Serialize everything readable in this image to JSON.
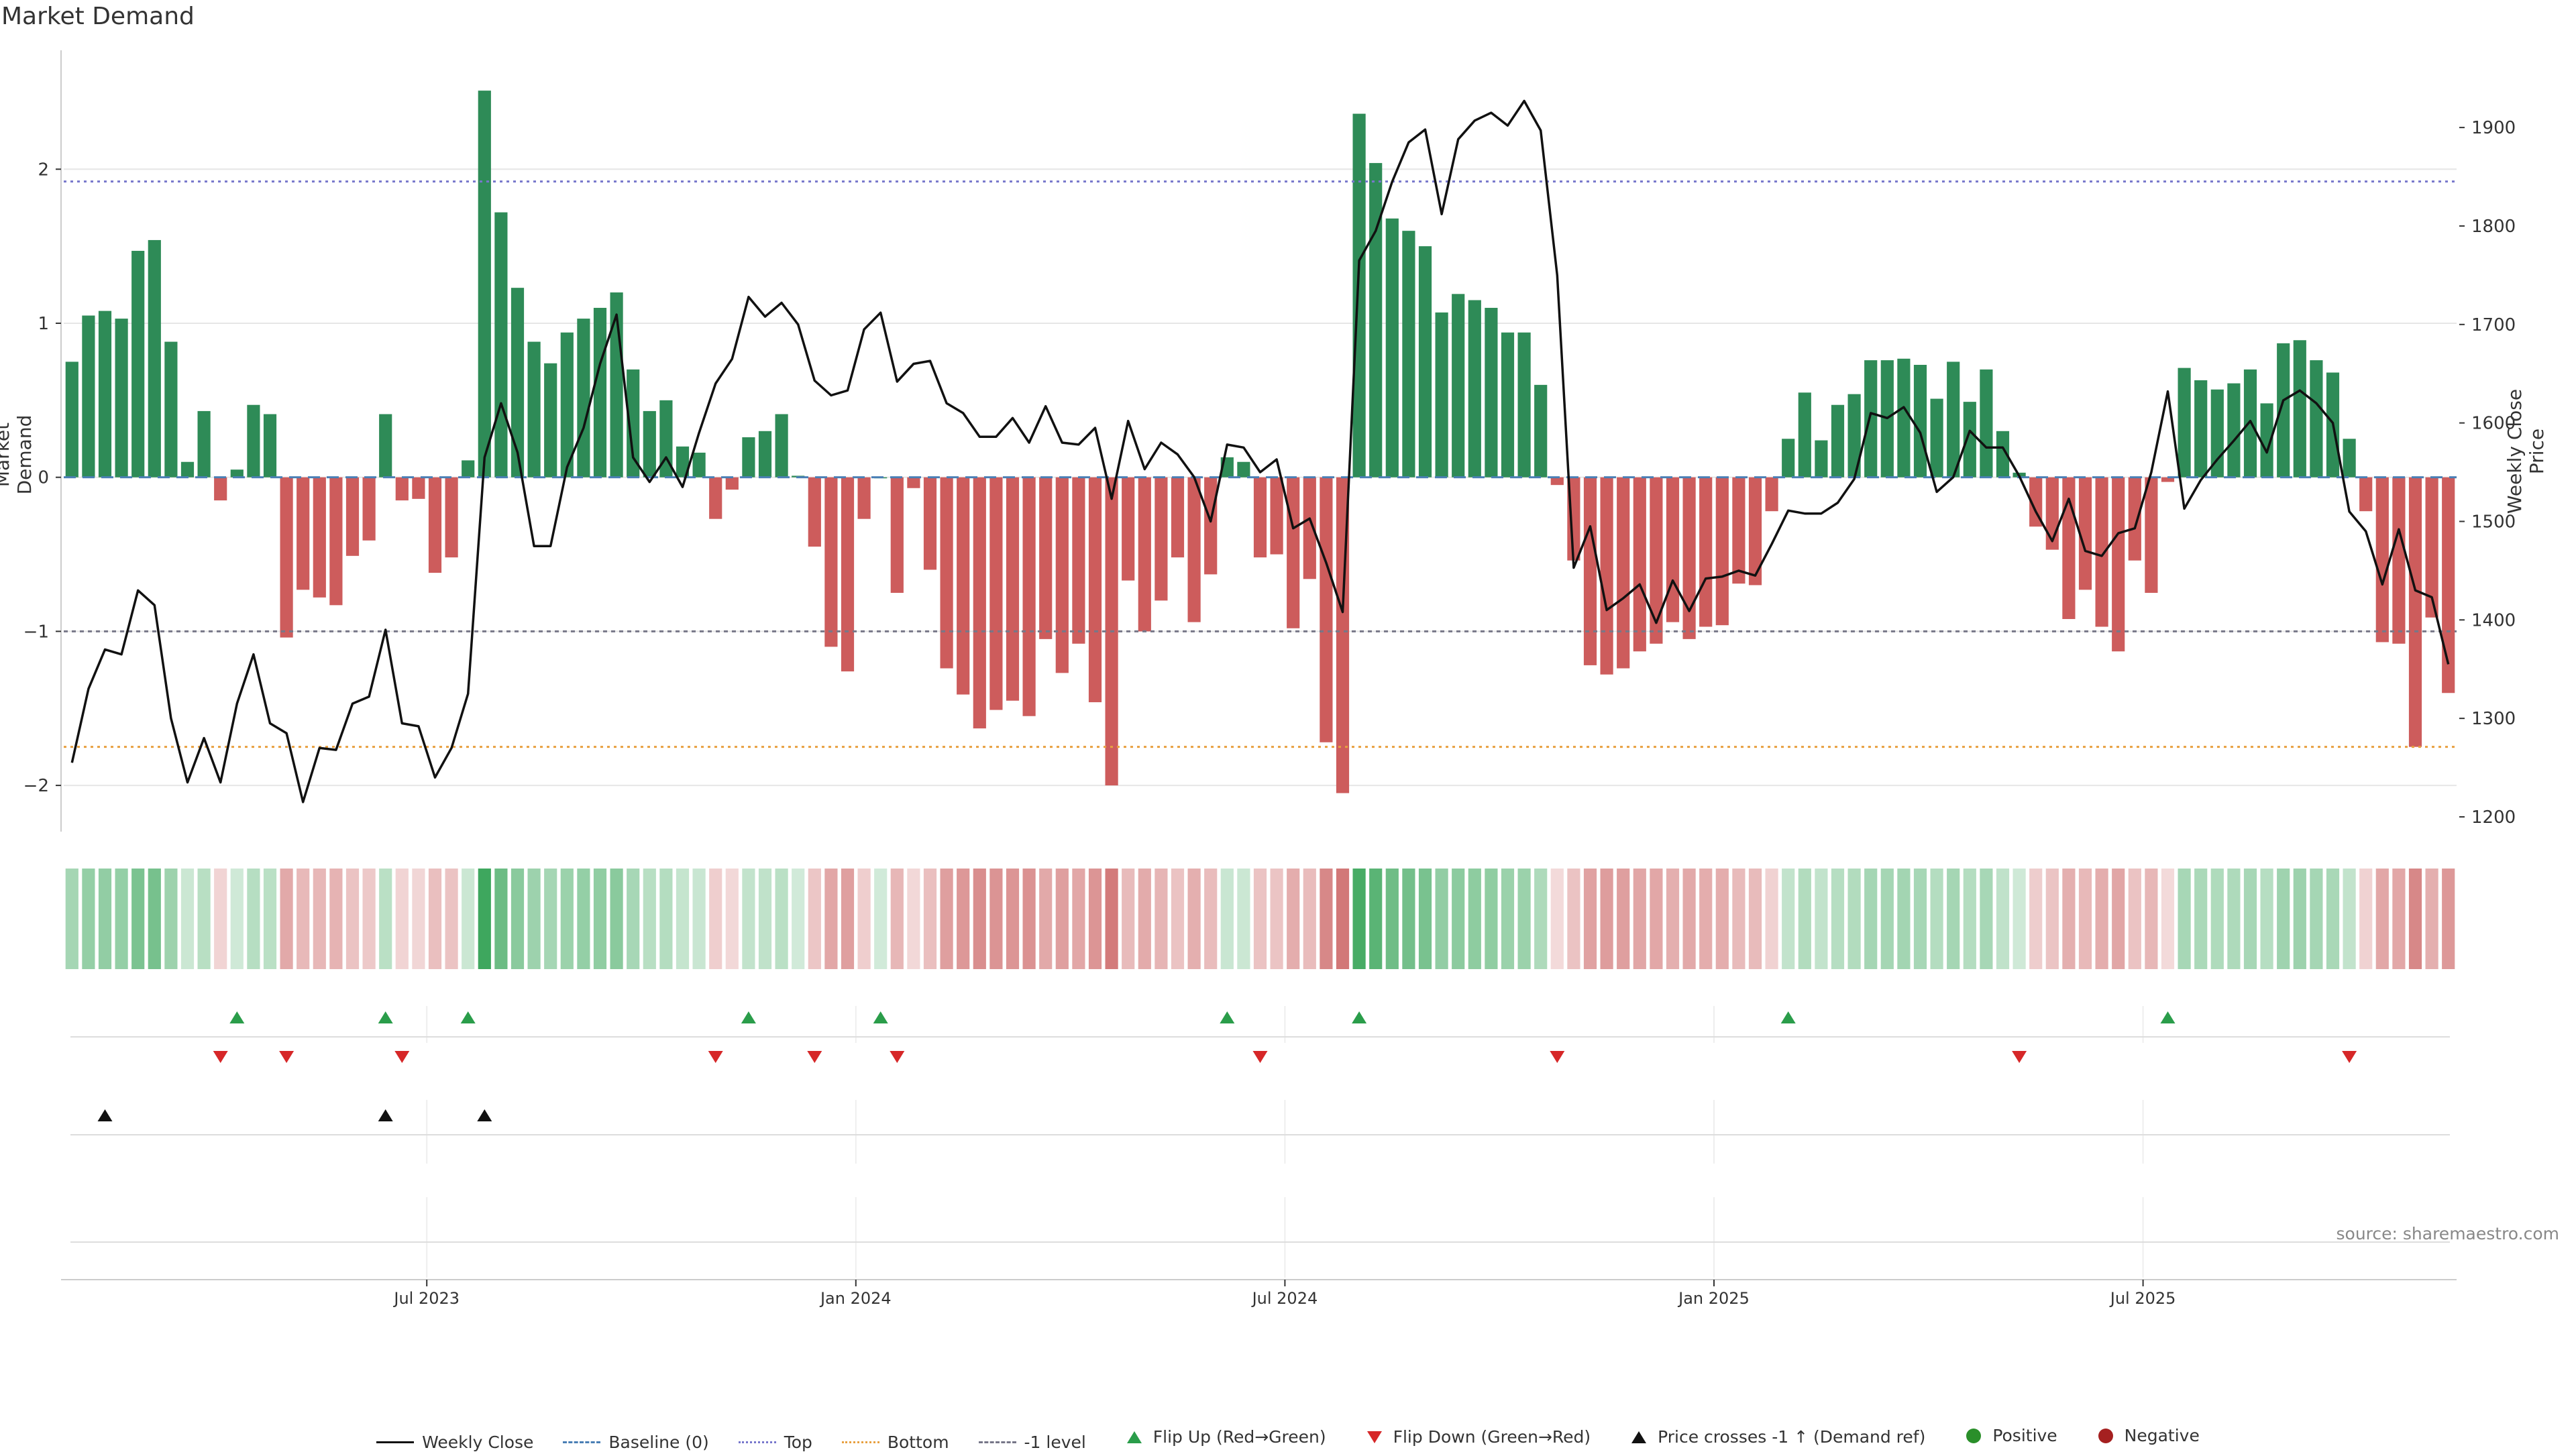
{
  "chart_data": {
    "type": "bar",
    "title": "Market Demand",
    "ylabel": "Market Demand",
    "y2label": "Weekly Close Price",
    "source": "source: sharemaestro.com",
    "ylim": [
      -2.3,
      2.75
    ],
    "y2lim": [
      1185,
      1975
    ],
    "yticks": [
      {
        "v": 2,
        "label": "2"
      },
      {
        "v": 1,
        "label": "1"
      },
      {
        "v": 0,
        "label": "0"
      },
      {
        "v": -1,
        "label": "−1"
      },
      {
        "v": -2,
        "label": "−2"
      }
    ],
    "y2ticks": [
      {
        "v": 1900,
        "label": "1900"
      },
      {
        "v": 1800,
        "label": "1800"
      },
      {
        "v": 1700,
        "label": "1700"
      },
      {
        "v": 1600,
        "label": "1600"
      },
      {
        "v": 1500,
        "label": "1500"
      },
      {
        "v": 1400,
        "label": "1400"
      },
      {
        "v": 1300,
        "label": "1300"
      },
      {
        "v": 1200,
        "label": "1200"
      }
    ],
    "xticks": [
      {
        "week": 22,
        "label": "Jul 2023"
      },
      {
        "week": 48,
        "label": "Jan 2024"
      },
      {
        "week": 74,
        "label": "Jul 2024"
      },
      {
        "week": 100,
        "label": "Jan 2025"
      },
      {
        "week": 126,
        "label": "Jul 2025"
      }
    ],
    "levels": {
      "top": 1.92,
      "bottom": -1.75,
      "minus_one": -1.0
    },
    "demand": [
      0.75,
      1.05,
      1.08,
      1.03,
      1.47,
      1.54,
      0.88,
      0.1,
      0.43,
      -0.15,
      0.05,
      0.47,
      0.41,
      -1.04,
      -0.73,
      -0.78,
      -0.83,
      -0.51,
      -0.41,
      0.41,
      -0.15,
      -0.14,
      -0.62,
      -0.52,
      0.11,
      2.51,
      1.72,
      1.23,
      0.88,
      0.74,
      0.94,
      1.03,
      1.1,
      1.2,
      0.7,
      0.43,
      0.5,
      0.2,
      0.16,
      -0.27,
      -0.08,
      0.26,
      0.3,
      0.41,
      0.01,
      -0.45,
      -1.1,
      -1.26,
      -0.27,
      0.0,
      -0.75,
      -0.07,
      -0.6,
      -1.24,
      -1.41,
      -1.63,
      -1.51,
      -1.45,
      -1.55,
      -1.05,
      -1.27,
      -1.08,
      -1.46,
      -2.0,
      -0.67,
      -1.0,
      -0.8,
      -0.52,
      -0.94,
      -0.63,
      0.13,
      0.1,
      -0.52,
      -0.5,
      -0.98,
      -0.66,
      -1.72,
      -2.05,
      2.36,
      2.04,
      1.68,
      1.6,
      1.5,
      1.07,
      1.19,
      1.15,
      1.1,
      0.94,
      0.94,
      0.6,
      -0.05,
      -0.54,
      -1.22,
      -1.28,
      -1.24,
      -1.13,
      -1.08,
      -0.94,
      -1.05,
      -0.97,
      -0.96,
      -0.69,
      -0.7,
      -0.22,
      0.25,
      0.55,
      0.24,
      0.47,
      0.54,
      0.76,
      0.76,
      0.77,
      0.73,
      0.51,
      0.75,
      0.49,
      0.7,
      0.3,
      0.03,
      -0.32,
      -0.47,
      -0.92,
      -0.73,
      -0.97,
      -1.13,
      -0.54,
      -0.75,
      -0.03,
      0.71,
      0.63,
      0.57,
      0.61,
      0.7,
      0.48,
      0.87,
      0.89,
      0.76,
      0.68,
      0.25,
      -0.22,
      -1.07,
      -1.08,
      -1.75,
      -0.91,
      -1.4
    ],
    "close": [
      1255,
      1330,
      1370,
      1365,
      1430,
      1415,
      1300,
      1235,
      1280,
      1235,
      1315,
      1365,
      1295,
      1285,
      1215,
      1270,
      1268,
      1315,
      1322,
      1390,
      1295,
      1292,
      1240,
      1270,
      1325,
      1565,
      1620,
      1570,
      1475,
      1475,
      1555,
      1595,
      1660,
      1710,
      1565,
      1540,
      1565,
      1535,
      1590,
      1640,
      1665,
      1728,
      1708,
      1722,
      1700,
      1643,
      1628,
      1633,
      1695,
      1712,
      1642,
      1660,
      1663,
      1620,
      1610,
      1586,
      1586,
      1605,
      1580,
      1617,
      1580,
      1578,
      1595,
      1523,
      1602,
      1553,
      1580,
      1568,
      1545,
      1500,
      1578,
      1575,
      1550,
      1563,
      1493,
      1503,
      1458,
      1408,
      1765,
      1795,
      1845,
      1885,
      1898,
      1812,
      1888,
      1907,
      1915,
      1902,
      1927,
      1897,
      1750,
      1453,
      1495,
      1410,
      1422,
      1436,
      1397,
      1440,
      1409,
      1442,
      1444,
      1450,
      1445,
      1477,
      1511,
      1508,
      1508,
      1519,
      1543,
      1610,
      1605,
      1616,
      1590,
      1530,
      1545,
      1592,
      1575,
      1575,
      1546,
      1510,
      1480,
      1523,
      1470,
      1465,
      1488,
      1493,
      1550,
      1632,
      1513,
      1542,
      1563,
      1582,
      1602,
      1570,
      1623,
      1633,
      1620,
      1600,
      1510,
      1490,
      1436,
      1492,
      1430,
      1423,
      1355
    ],
    "flip_up_weeks": [
      10,
      19,
      24,
      41,
      49,
      70,
      78,
      104,
      127
    ],
    "flip_down_weeks": [
      9,
      13,
      20,
      39,
      45,
      50,
      72,
      90,
      118,
      138
    ],
    "price_cross_weeks": [
      2,
      19,
      25
    ],
    "legend": [
      "Weekly Close",
      "Baseline (0)",
      "Top",
      "Bottom",
      "-1 level",
      "Flip Up (Red→Green)",
      "Flip Down (Green→Red)",
      "Price crosses -1 ↑ (Demand ref)",
      "Positive",
      "Negative"
    ]
  },
  "colors": {
    "positive": "#2e8b57",
    "negative": "#cd5c5c",
    "close": "#111111",
    "baseline": "#4a7fb5",
    "top": "#7777cc",
    "bottom": "#e8a040",
    "minus_one": "#777788",
    "flip_up": "#2a9d4a",
    "flip_down": "#d62728",
    "cross": "#111111",
    "grid": "#e6e6e6",
    "axis": "#cccccc",
    "text": "#333333"
  }
}
